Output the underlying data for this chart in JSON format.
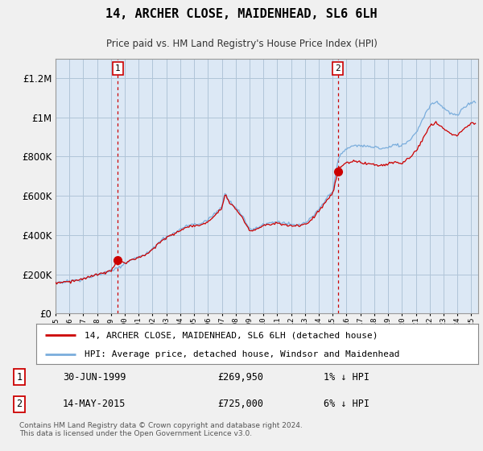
{
  "title": "14, ARCHER CLOSE, MAIDENHEAD, SL6 6LH",
  "subtitle": "Price paid vs. HM Land Registry's House Price Index (HPI)",
  "legend_line1": "14, ARCHER CLOSE, MAIDENHEAD, SL6 6LH (detached house)",
  "legend_line2": "HPI: Average price, detached house, Windsor and Maidenhead",
  "annotation1_date": "30-JUN-1999",
  "annotation1_price": 269950,
  "annotation1_hpi": "1% ↓ HPI",
  "annotation2_date": "14-MAY-2015",
  "annotation2_price": 725000,
  "annotation2_hpi": "6% ↓ HPI",
  "footnote": "Contains HM Land Registry data © Crown copyright and database right 2024.\nThis data is licensed under the Open Government Licence v3.0.",
  "sale1_year": 1999.5,
  "sale1_value": 269950,
  "sale2_year": 2015.37,
  "sale2_value": 725000,
  "hpi_color": "#7aaddc",
  "price_color": "#cc0000",
  "background_color": "#f0f0f0",
  "plot_background": "#dce8f5",
  "ylim": [
    0,
    1300000
  ],
  "xlim_start": 1995.0,
  "xlim_end": 2025.5
}
